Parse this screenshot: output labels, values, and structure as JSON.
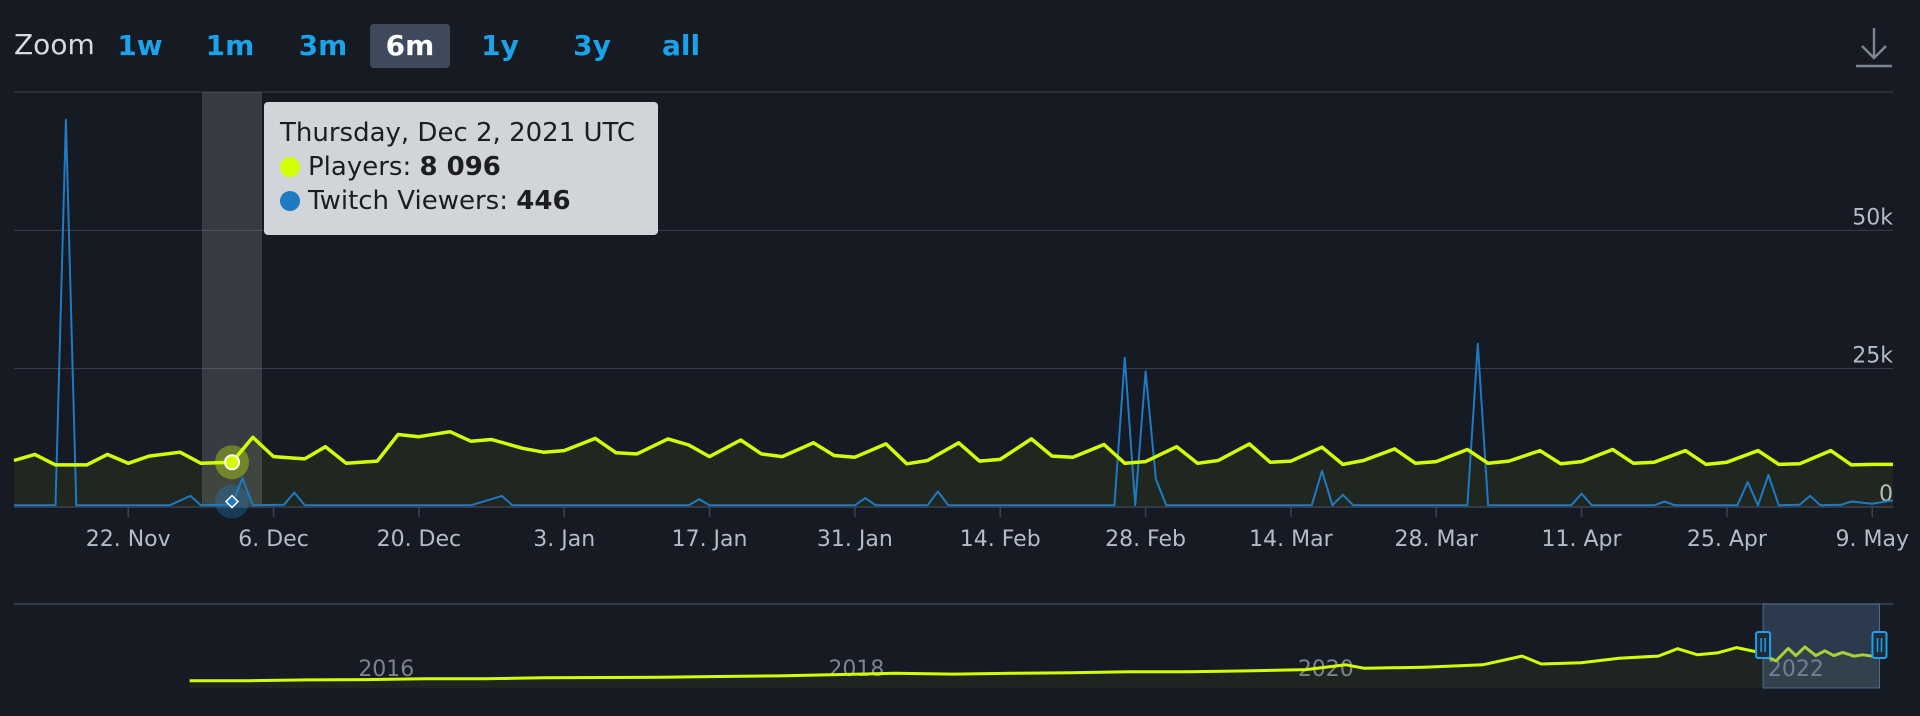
{
  "zoom": {
    "label": "Zoom",
    "options": [
      "1w",
      "1m",
      "3m",
      "6m",
      "1y",
      "3y",
      "all"
    ],
    "active": "6m"
  },
  "icons": {
    "download": "download-icon"
  },
  "colors": {
    "players": "#d4ff00",
    "twitch": "#1f7ac4",
    "background": "#151a23",
    "tick_text": "#b4bcc7",
    "grid": "#3a414d"
  },
  "tooltip": {
    "date": "Thursday, Dec 2, 2021 UTC",
    "players_label": "Players: ",
    "players_value": "8 096",
    "twitch_label": "Twitch Viewers: ",
    "twitch_value": "446"
  },
  "chart_data": {
    "type": "line",
    "x_tick_labels": [
      "22. Nov",
      "6. Dec",
      "20. Dec",
      "3. Jan",
      "17. Jan",
      "31. Jan",
      "14. Feb",
      "28. Feb",
      "14. Mar",
      "28. Mar",
      "11. Apr",
      "25. Apr",
      "9. May"
    ],
    "y_tick_labels": [
      "0",
      "25k",
      "50k"
    ],
    "ylim": [
      0,
      75000
    ],
    "x_range": [
      "2021-11-11",
      "2022-05-11"
    ],
    "grid": true,
    "series": [
      {
        "name": "Players",
        "color": "#d4ff00",
        "points": [
          [
            "2021-11-11",
            8400
          ],
          [
            "2021-11-13",
            9500
          ],
          [
            "2021-11-15",
            7600
          ],
          [
            "2021-11-18",
            7600
          ],
          [
            "2021-11-20",
            9500
          ],
          [
            "2021-11-22",
            7900
          ],
          [
            "2021-11-24",
            9200
          ],
          [
            "2021-11-27",
            9900
          ],
          [
            "2021-11-29",
            7900
          ],
          [
            "2021-12-02",
            8096
          ],
          [
            "2021-12-04",
            12600
          ],
          [
            "2021-12-06",
            9100
          ],
          [
            "2021-12-09",
            8700
          ],
          [
            "2021-12-11",
            10900
          ],
          [
            "2021-12-13",
            7900
          ],
          [
            "2021-12-16",
            8300
          ],
          [
            "2021-12-18",
            13100
          ],
          [
            "2021-12-20",
            12700
          ],
          [
            "2021-12-23",
            13600
          ],
          [
            "2021-12-25",
            11900
          ],
          [
            "2021-12-27",
            12200
          ],
          [
            "2021-12-30",
            10600
          ],
          [
            "2022-01-01",
            9900
          ],
          [
            "2022-01-03",
            10200
          ],
          [
            "2022-01-06",
            12400
          ],
          [
            "2022-01-08",
            9800
          ],
          [
            "2022-01-10",
            9600
          ],
          [
            "2022-01-13",
            12300
          ],
          [
            "2022-01-15",
            11200
          ],
          [
            "2022-01-17",
            9100
          ],
          [
            "2022-01-20",
            12100
          ],
          [
            "2022-01-22",
            9600
          ],
          [
            "2022-01-24",
            9100
          ],
          [
            "2022-01-27",
            11600
          ],
          [
            "2022-01-29",
            9300
          ],
          [
            "2022-01-31",
            9000
          ],
          [
            "2022-02-03",
            11400
          ],
          [
            "2022-02-05",
            7800
          ],
          [
            "2022-02-07",
            8400
          ],
          [
            "2022-02-10",
            11600
          ],
          [
            "2022-02-12",
            8300
          ],
          [
            "2022-02-14",
            8600
          ],
          [
            "2022-02-17",
            12300
          ],
          [
            "2022-02-19",
            9200
          ],
          [
            "2022-02-21",
            9000
          ],
          [
            "2022-02-24",
            11300
          ],
          [
            "2022-02-26",
            7900
          ],
          [
            "2022-02-28",
            8200
          ],
          [
            "2022-03-03",
            10900
          ],
          [
            "2022-03-05",
            7900
          ],
          [
            "2022-03-07",
            8400
          ],
          [
            "2022-03-10",
            11400
          ],
          [
            "2022-03-12",
            8100
          ],
          [
            "2022-03-14",
            8300
          ],
          [
            "2022-03-17",
            10800
          ],
          [
            "2022-03-19",
            7700
          ],
          [
            "2022-03-21",
            8400
          ],
          [
            "2022-03-24",
            10500
          ],
          [
            "2022-03-26",
            7900
          ],
          [
            "2022-03-28",
            8200
          ],
          [
            "2022-03-31",
            10400
          ],
          [
            "2022-04-02",
            7900
          ],
          [
            "2022-04-04",
            8300
          ],
          [
            "2022-04-07",
            10200
          ],
          [
            "2022-04-09",
            7800
          ],
          [
            "2022-04-11",
            8200
          ],
          [
            "2022-04-14",
            10400
          ],
          [
            "2022-04-16",
            7900
          ],
          [
            "2022-04-18",
            8100
          ],
          [
            "2022-04-21",
            10200
          ],
          [
            "2022-04-23",
            7700
          ],
          [
            "2022-04-25",
            8100
          ],
          [
            "2022-04-28",
            10200
          ],
          [
            "2022-04-30",
            7700
          ],
          [
            "2022-05-02",
            7800
          ],
          [
            "2022-05-05",
            10200
          ],
          [
            "2022-05-07",
            7600
          ],
          [
            "2022-05-09",
            7700
          ],
          [
            "2022-05-11",
            7700
          ]
        ]
      },
      {
        "name": "Twitch Viewers",
        "color": "#1f7ac4",
        "points": [
          [
            "2021-11-11",
            300
          ],
          [
            "2021-11-14",
            300
          ],
          [
            "2021-11-15",
            300
          ],
          [
            "2021-11-16",
            70000
          ],
          [
            "2021-11-17",
            300
          ],
          [
            "2021-11-22",
            300
          ],
          [
            "2021-11-26",
            300
          ],
          [
            "2021-11-28",
            2000
          ],
          [
            "2021-11-29",
            300
          ],
          [
            "2021-12-02",
            446
          ],
          [
            "2021-12-03",
            5200
          ],
          [
            "2021-12-04",
            300
          ],
          [
            "2021-12-07",
            400
          ],
          [
            "2021-12-08",
            2600
          ],
          [
            "2021-12-09",
            300
          ],
          [
            "2021-12-25",
            300
          ],
          [
            "2021-12-28",
            2000
          ],
          [
            "2021-12-29",
            300
          ],
          [
            "2022-01-15",
            300
          ],
          [
            "2022-01-16",
            1400
          ],
          [
            "2022-01-17",
            300
          ],
          [
            "2022-01-31",
            300
          ],
          [
            "2022-02-01",
            1600
          ],
          [
            "2022-02-02",
            300
          ],
          [
            "2022-02-07",
            300
          ],
          [
            "2022-02-08",
            2800
          ],
          [
            "2022-02-09",
            300
          ],
          [
            "2022-02-25",
            300
          ],
          [
            "2022-02-26",
            27000
          ],
          [
            "2022-02-27",
            300
          ],
          [
            "2022-02-28",
            24500
          ],
          [
            "2022-03-01",
            5000
          ],
          [
            "2022-03-02",
            300
          ],
          [
            "2022-03-15",
            300
          ],
          [
            "2022-03-16",
            300
          ],
          [
            "2022-03-17",
            6500
          ],
          [
            "2022-03-18",
            300
          ],
          [
            "2022-03-19",
            2200
          ],
          [
            "2022-03-20",
            300
          ],
          [
            "2022-03-31",
            300
          ],
          [
            "2022-04-01",
            29500
          ],
          [
            "2022-04-02",
            300
          ],
          [
            "2022-04-10",
            300
          ],
          [
            "2022-04-11",
            2400
          ],
          [
            "2022-04-12",
            300
          ],
          [
            "2022-04-18",
            300
          ],
          [
            "2022-04-19",
            1000
          ],
          [
            "2022-04-20",
            300
          ],
          [
            "2022-04-26",
            300
          ],
          [
            "2022-04-27",
            4500
          ],
          [
            "2022-04-28",
            300
          ],
          [
            "2022-04-29",
            5800
          ],
          [
            "2022-04-30",
            300
          ],
          [
            "2022-05-02",
            400
          ],
          [
            "2022-05-03",
            2000
          ],
          [
            "2022-05-04",
            300
          ],
          [
            "2022-05-06",
            400
          ],
          [
            "2022-05-07",
            1000
          ],
          [
            "2022-05-09",
            600
          ],
          [
            "2022-05-11",
            1200
          ]
        ]
      }
    ],
    "highlight": {
      "date": "2021-12-02",
      "players": 8096,
      "twitch": 446
    },
    "navigator": {
      "x_tick_labels": [
        "2016",
        "2018",
        "2020",
        "2022"
      ],
      "x_range": [
        "2014-06-01",
        "2022-06-01"
      ],
      "ylim": [
        0,
        28000
      ],
      "selection": [
        "2021-11-11",
        "2022-05-11"
      ],
      "series": [
        {
          "name": "Players",
          "points": [
            [
              "2015-03-01",
              500
            ],
            [
              "2015-06-01",
              500
            ],
            [
              "2015-09-01",
              800
            ],
            [
              "2015-12-01",
              900
            ],
            [
              "2016-03-01",
              1200
            ],
            [
              "2016-06-01",
              1200
            ],
            [
              "2016-09-01",
              1600
            ],
            [
              "2016-12-01",
              1700
            ],
            [
              "2017-03-01",
              1800
            ],
            [
              "2017-06-01",
              2100
            ],
            [
              "2017-09-01",
              2300
            ],
            [
              "2017-12-01",
              2800
            ],
            [
              "2018-03-01",
              3300
            ],
            [
              "2018-06-01",
              3000
            ],
            [
              "2018-09-01",
              3300
            ],
            [
              "2018-12-01",
              3500
            ],
            [
              "2019-03-01",
              3900
            ],
            [
              "2019-06-01",
              3900
            ],
            [
              "2019-09-01",
              4200
            ],
            [
              "2019-12-01",
              4700
            ],
            [
              "2020-02-01",
              6500
            ],
            [
              "2020-03-01",
              5200
            ],
            [
              "2020-06-01",
              5600
            ],
            [
              "2020-09-01",
              6500
            ],
            [
              "2020-11-01",
              9800
            ],
            [
              "2020-12-01",
              6800
            ],
            [
              "2021-02-01",
              7300
            ],
            [
              "2021-04-01",
              9000
            ],
            [
              "2021-06-01",
              9800
            ],
            [
              "2021-07-01",
              12600
            ],
            [
              "2021-08-01",
              10300
            ],
            [
              "2021-09-01",
              11000
            ],
            [
              "2021-10-01",
              13000
            ],
            [
              "2021-11-01",
              11400
            ],
            [
              "2021-12-01",
              8000
            ],
            [
              "2021-12-20",
              12700
            ],
            [
              "2022-01-01",
              10000
            ],
            [
              "2022-01-15",
              13300
            ],
            [
              "2022-02-01",
              10000
            ],
            [
              "2022-02-15",
              11800
            ],
            [
              "2022-03-01",
              10000
            ],
            [
              "2022-03-15",
              11200
            ],
            [
              "2022-04-01",
              9800
            ],
            [
              "2022-04-15",
              10300
            ],
            [
              "2022-05-11",
              9400
            ]
          ]
        }
      ]
    }
  }
}
